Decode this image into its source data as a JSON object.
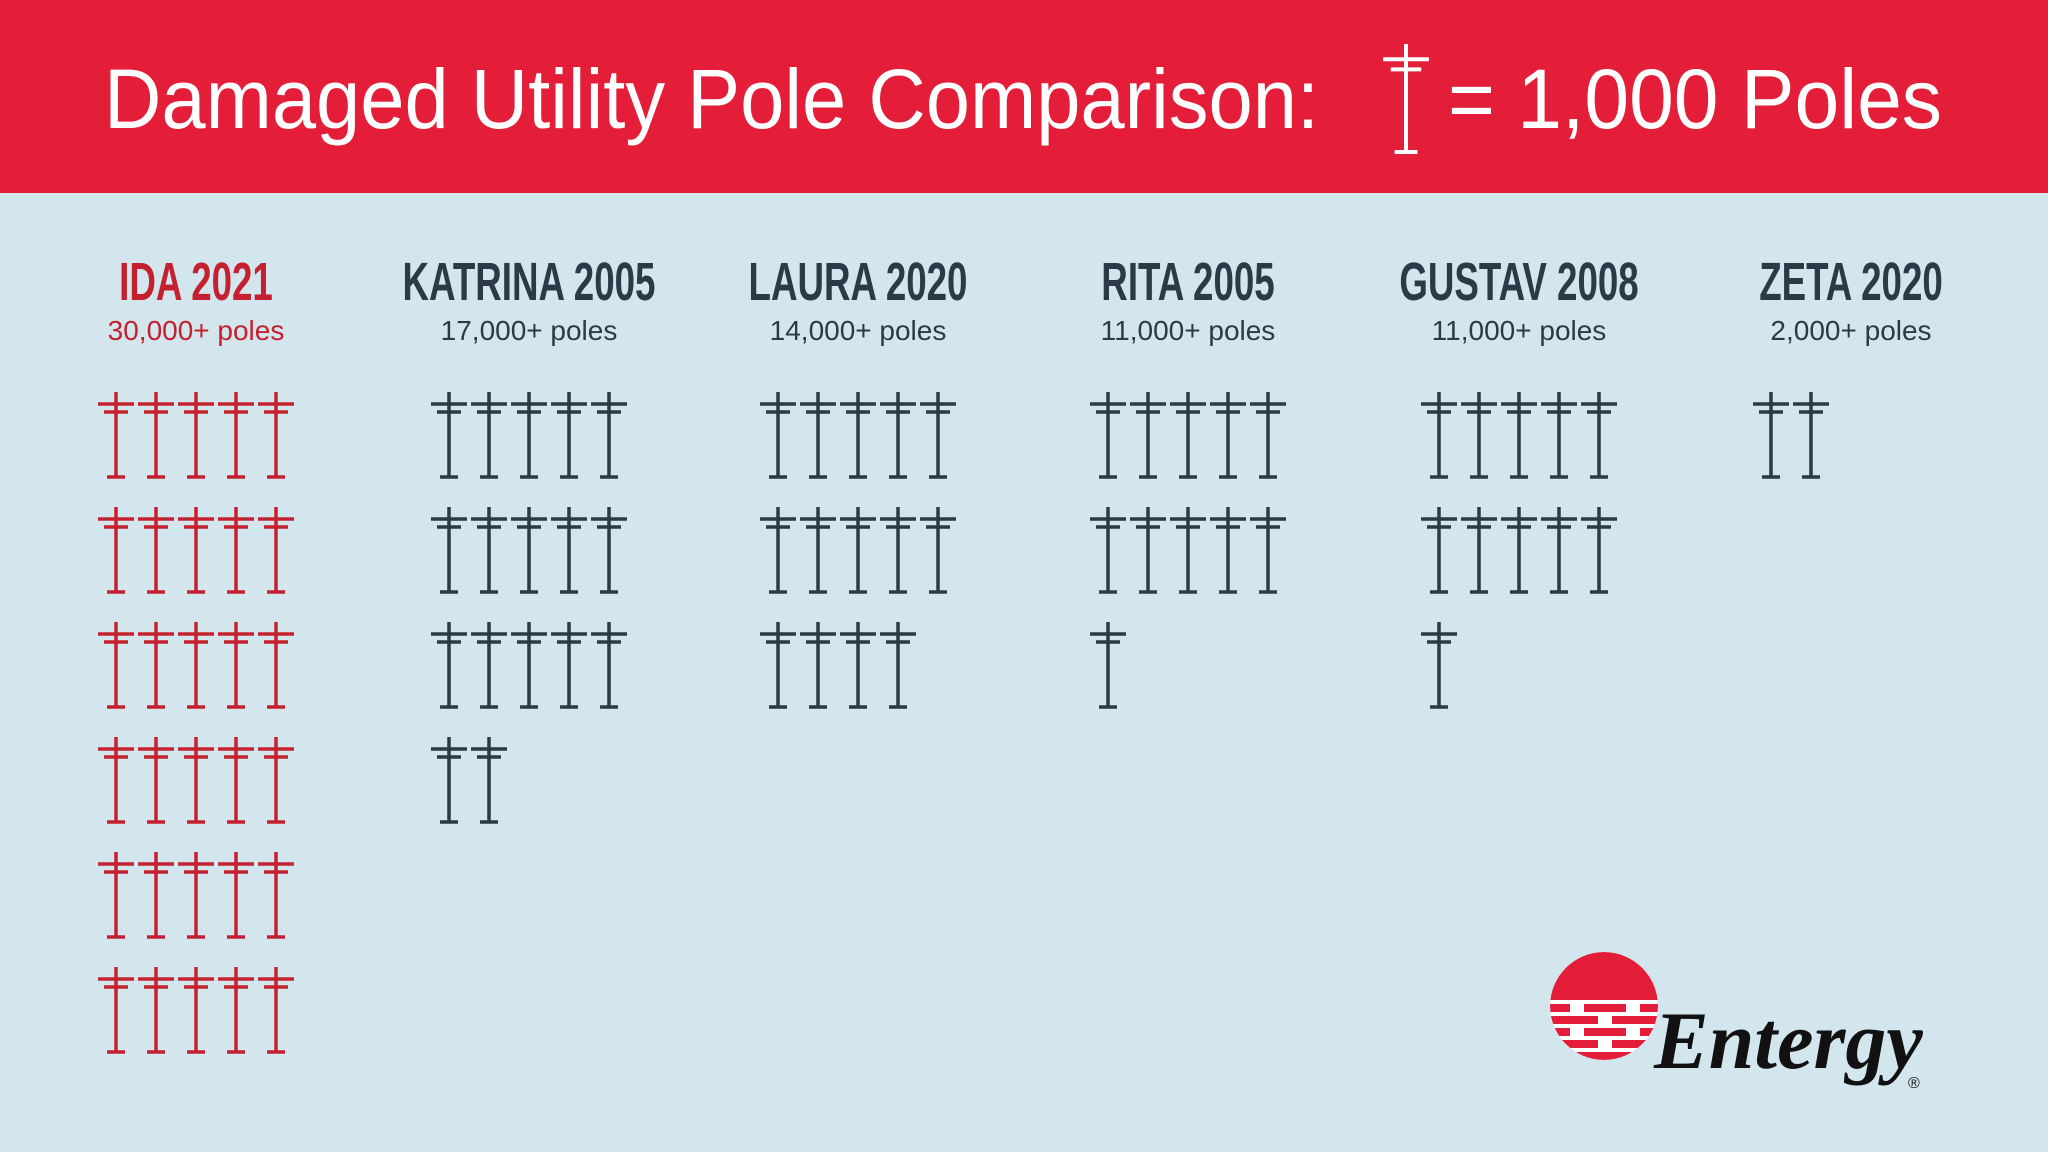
{
  "chart_data": {
    "type": "pictogram",
    "title": "Damaged Utility Pole Comparison:",
    "unit": {
      "value": 1000,
      "label": "= 1,000 Poles"
    },
    "categories": [
      "IDA 2021",
      "KATRINA 2005",
      "LAURA 2020",
      "RITA 2005",
      "GUSTAV 2008",
      "ZETA 2020"
    ],
    "values": [
      30000,
      17000,
      14000,
      11000,
      11000,
      2000
    ],
    "value_labels": [
      "30,000+ poles",
      "17,000+ poles",
      "14,000+ poles",
      "11,000+ poles",
      "11,000+ poles",
      "2,000+ poles"
    ],
    "colors": [
      "#c4202f",
      "#2b3a46",
      "#2b3a46",
      "#2b3a46",
      "#2b3a46",
      "#2b3a46"
    ]
  },
  "logo": {
    "text": "Entergy",
    "mark": "®"
  }
}
